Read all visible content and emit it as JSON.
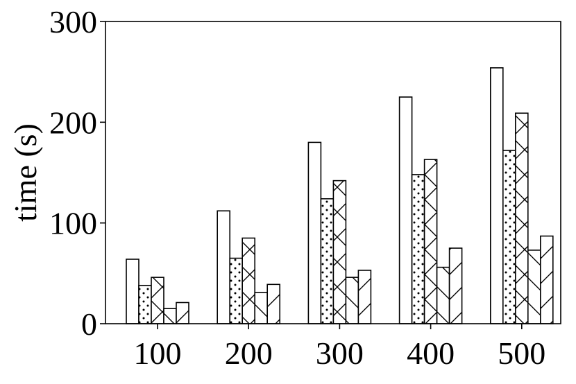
{
  "chart_data": {
    "type": "bar",
    "title": "",
    "xlabel": "",
    "ylabel": "time (s)",
    "categories": [
      "100",
      "200",
      "300",
      "400",
      "500"
    ],
    "ylim": [
      0,
      300
    ],
    "yticks": [
      0,
      100,
      200,
      300
    ],
    "grid": false,
    "legend": "none",
    "bar_style": {
      "fill": "#ffffff",
      "stroke": "#000000"
    },
    "series": [
      {
        "pattern": "none",
        "values": [
          64,
          112,
          180,
          225,
          254
        ]
      },
      {
        "pattern": "dots",
        "values": [
          38,
          65,
          124,
          148,
          172
        ]
      },
      {
        "pattern": "cross-hatch",
        "values": [
          46,
          85,
          142,
          163,
          209
        ]
      },
      {
        "pattern": "back-diagonal",
        "values": [
          15,
          31,
          46,
          56,
          73
        ]
      },
      {
        "pattern": "diagonal",
        "values": [
          21,
          39,
          53,
          75,
          87
        ]
      }
    ]
  }
}
